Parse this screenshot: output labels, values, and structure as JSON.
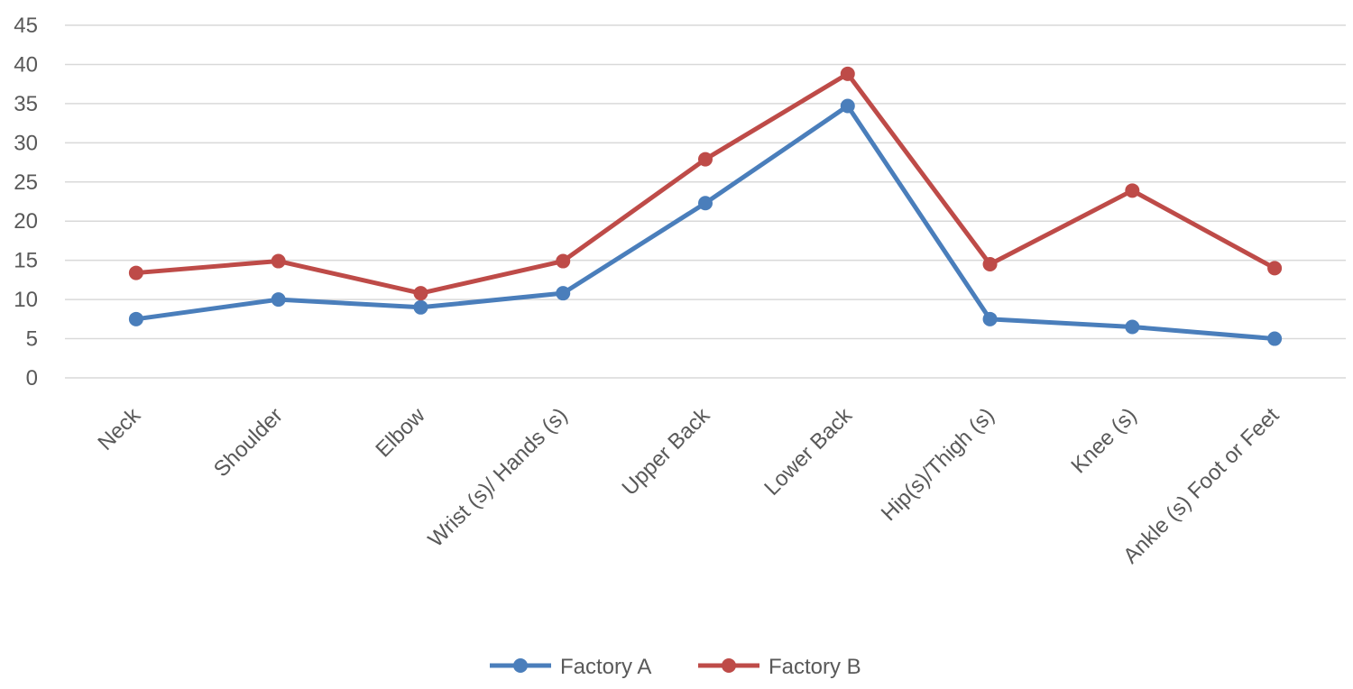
{
  "chart_data": {
    "type": "line",
    "title": "",
    "xlabel": "",
    "ylabel": "",
    "categories": [
      "Neck",
      "Shoulder",
      "Elbow",
      "Wrist (s)/ Hands (s)",
      "Upper Back",
      "Lower Back",
      "Hip(s)/Thigh (s)",
      "Knee (s)",
      "Ankle (s) Foot or Feet"
    ],
    "ylim": [
      0,
      45
    ],
    "yticks": [
      0,
      5,
      10,
      15,
      20,
      25,
      30,
      35,
      40,
      45
    ],
    "grid": true,
    "legend_position": "bottom",
    "series": [
      {
        "name": "Factory A",
        "color": "#4a7ebb",
        "values": [
          7.5,
          10,
          9,
          10.8,
          22.3,
          34.7,
          7.5,
          6.5,
          5
        ]
      },
      {
        "name": "Factory B",
        "color": "#be4b48",
        "values": [
          13.4,
          14.9,
          10.8,
          14.9,
          27.9,
          38.8,
          14.5,
          23.9,
          14
        ]
      }
    ]
  }
}
